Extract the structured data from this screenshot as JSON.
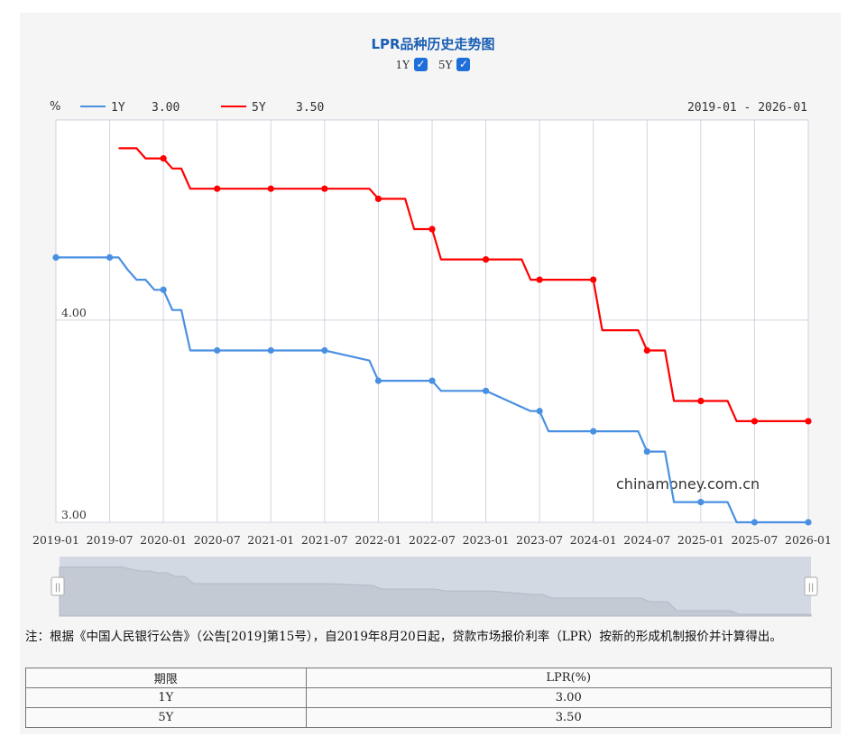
{
  "title": "LPR品种历史走势图",
  "toggles": [
    {
      "label": "1Y",
      "checked": true
    },
    {
      "label": "5Y",
      "checked": true
    }
  ],
  "legend": {
    "unit": "%",
    "items": [
      {
        "name": "1Y",
        "value": "3.00",
        "color": "#4a90e2"
      },
      {
        "name": "5Y",
        "value": "3.50",
        "color": "#ff0000"
      }
    ],
    "range": "2019-01 - 2026-01"
  },
  "watermark": "chinamoney.com.cn",
  "chart_data": {
    "type": "line",
    "x_ticks": [
      "2019-01",
      "2019-07",
      "2020-01",
      "2020-07",
      "2021-01",
      "2021-07",
      "2022-01",
      "2022-07",
      "2023-01",
      "2023-07",
      "2024-01",
      "2024-07",
      "2025-01",
      "2025-07",
      "2026-01"
    ],
    "y_ticks": [
      "3.00",
      "4.00"
    ],
    "ylim": [
      3.0,
      4.99
    ],
    "grid": true,
    "series": [
      {
        "name": "1Y",
        "color": "#4a90e2",
        "points": [
          [
            "2019-01",
            4.31
          ],
          [
            "2019-08",
            4.31
          ],
          [
            "2019-09",
            4.25
          ],
          [
            "2019-10",
            4.2
          ],
          [
            "2019-11",
            4.2
          ],
          [
            "2019-12",
            4.15
          ],
          [
            "2020-01",
            4.15
          ],
          [
            "2020-02",
            4.05
          ],
          [
            "2020-03",
            4.05
          ],
          [
            "2020-04",
            3.85
          ],
          [
            "2020-07",
            3.85
          ],
          [
            "2021-01",
            3.85
          ],
          [
            "2021-07",
            3.85
          ],
          [
            "2021-12",
            3.8
          ],
          [
            "2022-01",
            3.7
          ],
          [
            "2022-07",
            3.7
          ],
          [
            "2022-08",
            3.65
          ],
          [
            "2023-01",
            3.65
          ],
          [
            "2023-06",
            3.55
          ],
          [
            "2023-07",
            3.55
          ],
          [
            "2023-08",
            3.45
          ],
          [
            "2024-01",
            3.45
          ],
          [
            "2024-06",
            3.45
          ],
          [
            "2024-07",
            3.35
          ],
          [
            "2024-09",
            3.35
          ],
          [
            "2024-10",
            3.1
          ],
          [
            "2025-01",
            3.1
          ],
          [
            "2025-04",
            3.1
          ],
          [
            "2025-05",
            3.0
          ],
          [
            "2025-07",
            3.0
          ],
          [
            "2026-01",
            3.0
          ]
        ]
      },
      {
        "name": "5Y",
        "color": "#ff0000",
        "points": [
          [
            "2019-08",
            4.85
          ],
          [
            "2019-10",
            4.85
          ],
          [
            "2019-11",
            4.8
          ],
          [
            "2020-01",
            4.8
          ],
          [
            "2020-02",
            4.75
          ],
          [
            "2020-03",
            4.75
          ],
          [
            "2020-04",
            4.65
          ],
          [
            "2020-07",
            4.65
          ],
          [
            "2021-01",
            4.65
          ],
          [
            "2021-07",
            4.65
          ],
          [
            "2021-12",
            4.65
          ],
          [
            "2022-01",
            4.6
          ],
          [
            "2022-04",
            4.6
          ],
          [
            "2022-05",
            4.45
          ],
          [
            "2022-07",
            4.45
          ],
          [
            "2022-08",
            4.3
          ],
          [
            "2023-01",
            4.3
          ],
          [
            "2023-05",
            4.3
          ],
          [
            "2023-06",
            4.2
          ],
          [
            "2023-07",
            4.2
          ],
          [
            "2024-01",
            4.2
          ],
          [
            "2024-02",
            3.95
          ],
          [
            "2024-06",
            3.95
          ],
          [
            "2024-07",
            3.85
          ],
          [
            "2024-09",
            3.85
          ],
          [
            "2024-10",
            3.6
          ],
          [
            "2025-01",
            3.6
          ],
          [
            "2025-04",
            3.6
          ],
          [
            "2025-05",
            3.5
          ],
          [
            "2025-07",
            3.5
          ],
          [
            "2026-01",
            3.5
          ]
        ]
      }
    ],
    "markers": {
      "1Y": [
        "2019-01",
        "2019-07",
        "2020-01",
        "2020-07",
        "2021-01",
        "2021-07",
        "2022-01",
        "2022-07",
        "2023-01",
        "2023-07",
        "2024-01",
        "2024-07",
        "2025-01",
        "2025-07",
        "2026-01"
      ],
      "5Y": [
        "2020-01",
        "2020-07",
        "2021-01",
        "2021-07",
        "2022-01",
        "2022-07",
        "2023-01",
        "2023-07",
        "2024-01",
        "2024-07",
        "2025-01",
        "2025-07",
        "2026-01"
      ]
    }
  },
  "slider": {
    "left_handle": "||",
    "right_handle": "||"
  },
  "note": "注：根据《中国人民银行公告》（公告[2019]第15号），自2019年8月20日起，贷款市场报价利率（LPR）按新的形成机制报价并计算得出。",
  "table": {
    "headers": [
      "期限",
      "LPR(%)"
    ],
    "rows": [
      [
        "1Y",
        "3.00"
      ],
      [
        "5Y",
        "3.50"
      ]
    ]
  }
}
